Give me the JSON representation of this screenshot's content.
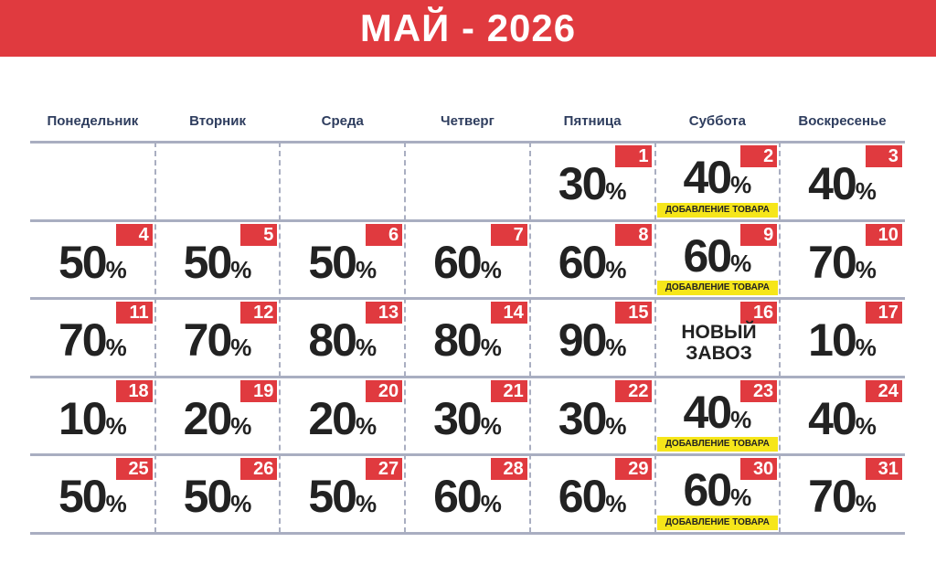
{
  "header": {
    "title": "МАЙ - 2026"
  },
  "weekdays": [
    "Понедельник",
    "Вторник",
    "Среда",
    "Четверг",
    "Пятница",
    "Суббота",
    "Воскресенье"
  ],
  "weeks": [
    [
      null,
      null,
      null,
      null,
      {
        "day": 1,
        "discount": 30,
        "unit": "%"
      },
      {
        "day": 2,
        "discount": 40,
        "unit": "%",
        "tag": "ДОБАВЛЕНИЕ ТОВАРА"
      },
      {
        "day": 3,
        "discount": 40,
        "unit": "%"
      }
    ],
    [
      {
        "day": 4,
        "discount": 50,
        "unit": "%"
      },
      {
        "day": 5,
        "discount": 50,
        "unit": "%"
      },
      {
        "day": 6,
        "discount": 50,
        "unit": "%"
      },
      {
        "day": 7,
        "discount": 60,
        "unit": "%"
      },
      {
        "day": 8,
        "discount": 60,
        "unit": "%"
      },
      {
        "day": 9,
        "discount": 60,
        "unit": "%",
        "tag": "ДОБАВЛЕНИЕ ТОВАРА"
      },
      {
        "day": 10,
        "discount": 70,
        "unit": "%"
      }
    ],
    [
      {
        "day": 11,
        "discount": 70,
        "unit": "%"
      },
      {
        "day": 12,
        "discount": 70,
        "unit": "%"
      },
      {
        "day": 13,
        "discount": 80,
        "unit": "%"
      },
      {
        "day": 14,
        "discount": 80,
        "unit": "%"
      },
      {
        "day": 15,
        "discount": 90,
        "unit": "%"
      },
      {
        "day": 16,
        "note": "НОВЫЙ ЗАВОЗ"
      },
      {
        "day": 17,
        "discount": 10,
        "unit": "%"
      }
    ],
    [
      {
        "day": 18,
        "discount": 10,
        "unit": "%"
      },
      {
        "day": 19,
        "discount": 20,
        "unit": "%"
      },
      {
        "day": 20,
        "discount": 20,
        "unit": "%"
      },
      {
        "day": 21,
        "discount": 30,
        "unit": "%"
      },
      {
        "day": 22,
        "discount": 30,
        "unit": "%"
      },
      {
        "day": 23,
        "discount": 40,
        "unit": "%",
        "tag": "ДОБАВЛЕНИЕ ТОВАРА"
      },
      {
        "day": 24,
        "discount": 40,
        "unit": "%"
      }
    ],
    [
      {
        "day": 25,
        "discount": 50,
        "unit": "%"
      },
      {
        "day": 26,
        "discount": 50,
        "unit": "%"
      },
      {
        "day": 27,
        "discount": 50,
        "unit": "%"
      },
      {
        "day": 28,
        "discount": 60,
        "unit": "%"
      },
      {
        "day": 29,
        "discount": 60,
        "unit": "%"
      },
      {
        "day": 30,
        "discount": 60,
        "unit": "%",
        "tag": "ДОБАВЛЕНИЕ ТОВАРА"
      },
      {
        "day": 31,
        "discount": 70,
        "unit": "%"
      }
    ]
  ]
}
